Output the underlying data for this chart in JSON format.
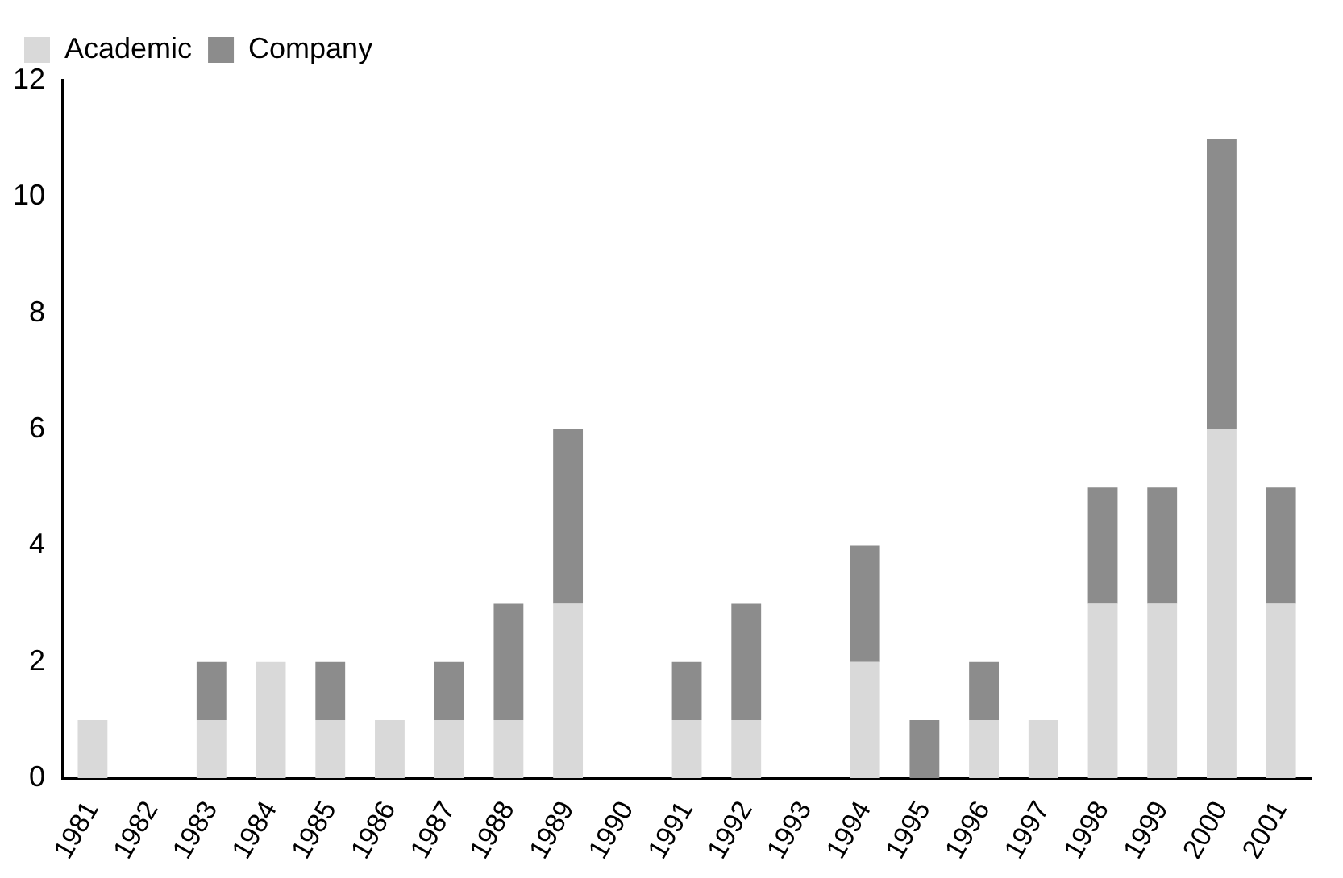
{
  "chart_data": {
    "type": "bar",
    "stacked": true,
    "categories": [
      "1981",
      "1982",
      "1983",
      "1984",
      "1985",
      "1986",
      "1987",
      "1988",
      "1989",
      "1990",
      "1991",
      "1992",
      "1993",
      "1994",
      "1995",
      "1996",
      "1997",
      "1998",
      "1999",
      "2000",
      "2001"
    ],
    "series": [
      {
        "name": "Academic",
        "color": "#d9d9d9",
        "values": [
          1,
          0,
          1,
          2,
          1,
          1,
          1,
          1,
          3,
          0,
          1,
          1,
          0,
          2,
          0,
          1,
          1,
          3,
          3,
          6,
          3
        ]
      },
      {
        "name": "Company",
        "color": "#8c8c8c",
        "values": [
          0,
          0,
          1,
          0,
          1,
          0,
          1,
          2,
          3,
          0,
          1,
          2,
          0,
          2,
          1,
          1,
          0,
          2,
          2,
          5,
          2
        ]
      }
    ],
    "ylim": [
      0,
      12
    ],
    "yticks": [
      0,
      2,
      4,
      6,
      8,
      10,
      12
    ],
    "grid": false,
    "legend": "top left"
  }
}
